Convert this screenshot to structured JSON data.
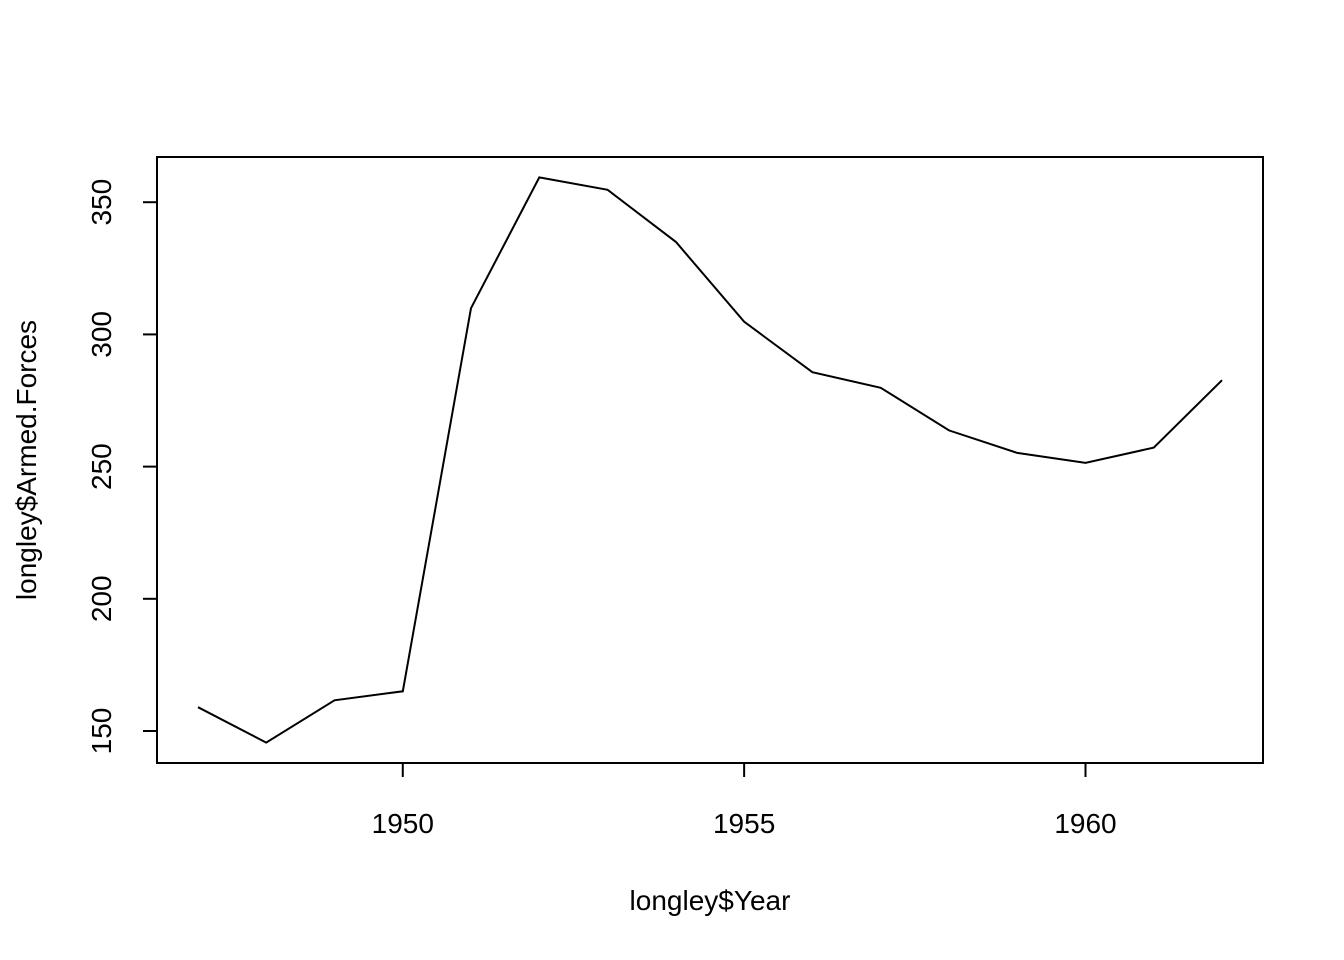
{
  "chart_data": {
    "type": "line",
    "xlabel": "longley$Year",
    "ylabel": "longley$Armed.Forces",
    "x": [
      1947,
      1948,
      1949,
      1950,
      1951,
      1952,
      1953,
      1954,
      1955,
      1956,
      1957,
      1958,
      1959,
      1960,
      1961,
      1962
    ],
    "series": [
      {
        "values": [
          159.0,
          145.6,
          161.6,
          165.0,
          309.9,
          359.4,
          354.7,
          335.0,
          304.8,
          285.7,
          279.8,
          263.7,
          255.2,
          251.4,
          257.2,
          282.7
        ]
      }
    ],
    "xlim": [
      1946.4,
      1962.6
    ],
    "ylim": [
      137.9,
      367.1
    ],
    "x_ticks": [
      "1950",
      "1955",
      "1960"
    ],
    "y_ticks": [
      "150",
      "200",
      "250",
      "300",
      "350"
    ],
    "grid": false,
    "line_color": "#000000"
  }
}
